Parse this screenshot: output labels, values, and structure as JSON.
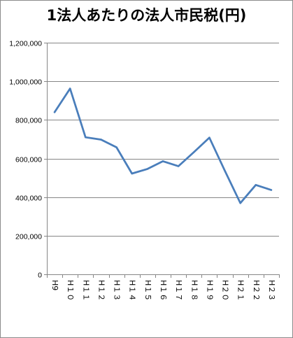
{
  "chart_data": {
    "type": "line",
    "title": "1法人あたりの法人市民税(円)",
    "xlabel": "",
    "ylabel": "",
    "categories": [
      "H9",
      "H10",
      "H11",
      "H12",
      "H13",
      "H14",
      "H15",
      "H16",
      "H17",
      "H18",
      "H19",
      "H20",
      "H21",
      "H22",
      "H23"
    ],
    "category_tick_labels": [
      "H9",
      "H１０",
      "H１１",
      "H１２",
      "H１３",
      "H１４",
      "H１５",
      "H１６",
      "H１７",
      "H１８",
      "H１９",
      "H２０",
      "H２１",
      "H２２",
      "H２３"
    ],
    "series": [
      {
        "values": [
          840000,
          962000,
          710000,
          698000,
          658000,
          522000,
          546000,
          586000,
          560000,
          633000,
          708000,
          537000,
          369000,
          463000,
          437000
        ]
      }
    ],
    "ylim": [
      0,
      1200000
    ],
    "yticks": [
      0,
      200000,
      400000,
      600000,
      800000,
      1000000,
      1200000
    ],
    "ytick_labels": [
      "0",
      "200,000",
      "400,000",
      "600,000",
      "800,000",
      "1,000,000",
      "1,200,000"
    ],
    "grid": true,
    "legend": "none",
    "line_color": "#4a7ebb",
    "grid_color": "#868686"
  }
}
